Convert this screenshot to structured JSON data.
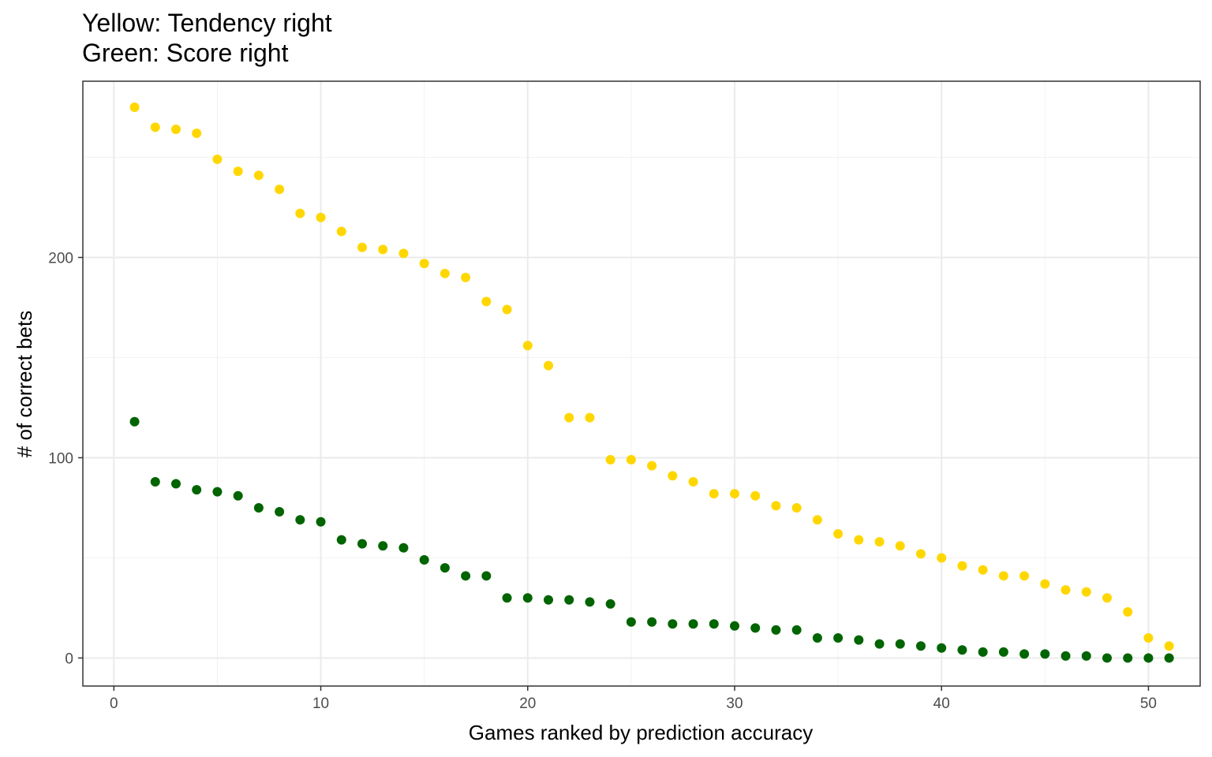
{
  "chart_data": {
    "type": "scatter",
    "title_lines": [
      "Yellow: Tendency right",
      "Green: Score right"
    ],
    "xlabel": "Games ranked by prediction accuracy",
    "ylabel": "# of correct bets",
    "xlim": [
      -1.5,
      52.5
    ],
    "ylim": [
      -14,
      288
    ],
    "xticks": [
      0,
      10,
      20,
      30,
      40,
      50
    ],
    "yticks": [
      0,
      100,
      200
    ],
    "grid": true,
    "series": [
      {
        "name": "Tendency right",
        "color": "#FFD700",
        "x": [
          1,
          2,
          3,
          4,
          5,
          6,
          7,
          8,
          9,
          10,
          11,
          12,
          13,
          14,
          15,
          16,
          17,
          18,
          19,
          20,
          21,
          22,
          23,
          24,
          25,
          26,
          27,
          28,
          29,
          30,
          31,
          32,
          33,
          34,
          35,
          36,
          37,
          38,
          39,
          40,
          41,
          42,
          43,
          44,
          45,
          46,
          47,
          48,
          49,
          50,
          51
        ],
        "y": [
          275,
          265,
          264,
          262,
          249,
          243,
          241,
          234,
          222,
          220,
          213,
          205,
          204,
          202,
          197,
          192,
          190,
          178,
          174,
          156,
          146,
          120,
          120,
          99,
          99,
          96,
          91,
          88,
          82,
          82,
          81,
          76,
          75,
          69,
          62,
          59,
          58,
          56,
          52,
          50,
          46,
          44,
          41,
          41,
          37,
          34,
          33,
          30,
          23,
          10,
          6
        ]
      },
      {
        "name": "Score right",
        "color": "#006400",
        "x": [
          1,
          2,
          3,
          4,
          5,
          6,
          7,
          8,
          9,
          10,
          11,
          12,
          13,
          14,
          15,
          16,
          17,
          18,
          19,
          20,
          21,
          22,
          23,
          24,
          25,
          26,
          27,
          28,
          29,
          30,
          31,
          32,
          33,
          34,
          35,
          36,
          37,
          38,
          39,
          40,
          41,
          42,
          43,
          44,
          45,
          46,
          47,
          48,
          49,
          50,
          51
        ],
        "y": [
          118,
          88,
          87,
          84,
          83,
          81,
          75,
          73,
          69,
          68,
          59,
          57,
          56,
          55,
          49,
          45,
          41,
          41,
          30,
          30,
          29,
          29,
          28,
          27,
          18,
          18,
          17,
          17,
          17,
          16,
          15,
          14,
          14,
          10,
          10,
          9,
          7,
          7,
          6,
          5,
          4,
          3,
          3,
          2,
          2,
          1,
          1,
          0,
          0,
          0,
          0
        ]
      }
    ]
  }
}
